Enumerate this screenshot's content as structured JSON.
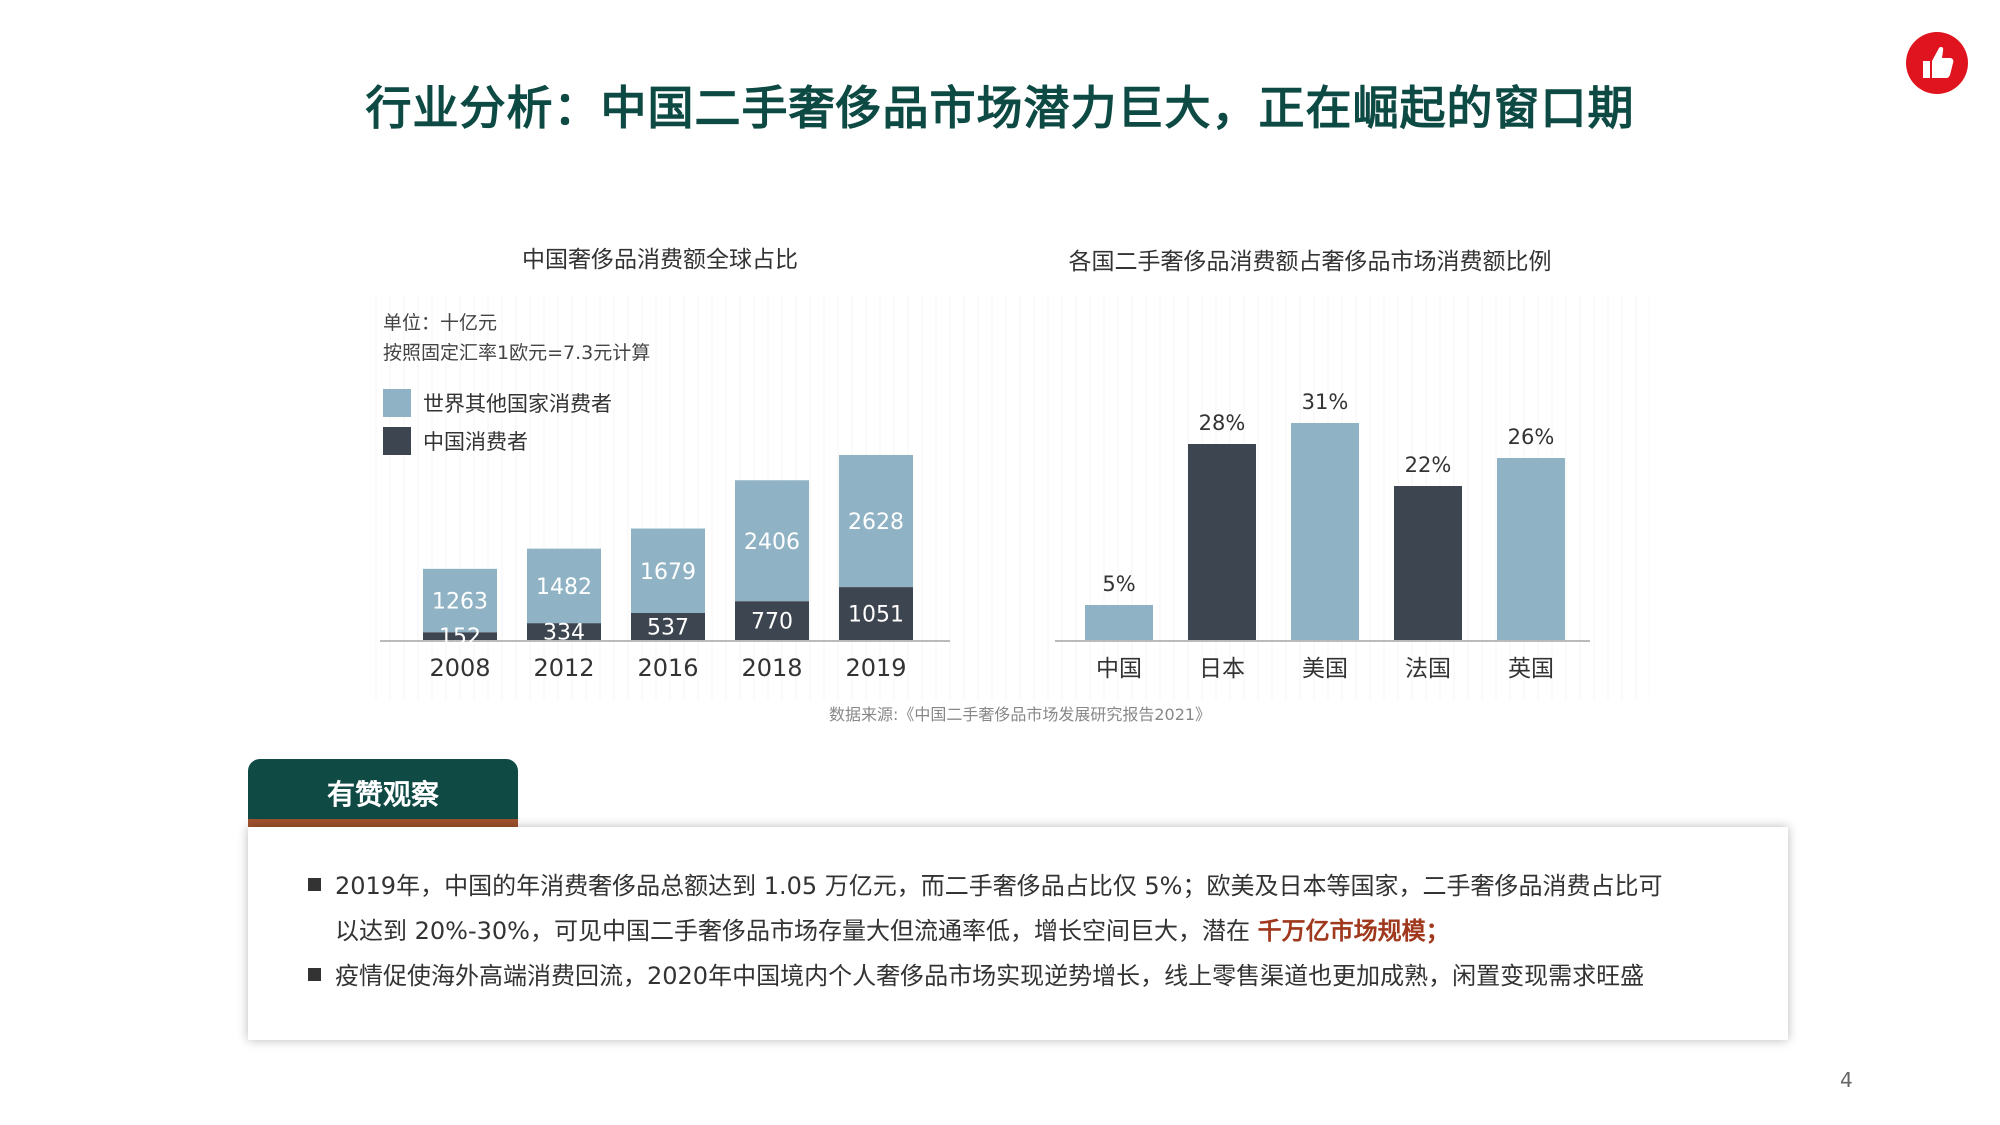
{
  "header": {
    "title": "行业分析：中国二手奢侈品市场潜力巨大，正在崛起的窗口期"
  },
  "chart_data": [
    {
      "type": "bar",
      "title": "中国奢侈品消费额全球占比",
      "unit": "单位：十亿元",
      "note": "按照固定汇率1欧元=7.3元计算",
      "categories": [
        "2008",
        "2012",
        "2016",
        "2018",
        "2019"
      ],
      "series": [
        {
          "name": "中国消费者",
          "values": [
            152,
            334,
            537,
            770,
            1051
          ],
          "labels": [
            "152",
            "334",
            "537",
            "770",
            "1051"
          ],
          "color": "#3d4550"
        },
        {
          "name": "世界其他国家消费者",
          "values": [
            1263,
            1482,
            1679,
            2406,
            2628
          ],
          "labels": [
            "1263",
            "1482",
            "1679",
            "2406",
            "2628"
          ],
          "color": "#8fb3c4"
        }
      ],
      "stacked": true,
      "legend": "top-left"
    },
    {
      "type": "bar",
      "title": "各国二手奢侈品消费额占奢侈品市场消费额比例",
      "categories": [
        "中国",
        "日本",
        "美国",
        "法国",
        "英国"
      ],
      "values": [
        5,
        28,
        31,
        22,
        26
      ],
      "labels": [
        "5%",
        "28%",
        "31%",
        "22%",
        "26%"
      ],
      "colors": [
        "#8fb3c4",
        "#3d4550",
        "#8fb3c4",
        "#3d4550",
        "#8fb3c4"
      ]
    }
  ],
  "source": "数据来源:《中国二手奢侈品市场发展研究报告2021》",
  "insight": {
    "tab_label": "有赞观察",
    "bullet1_line1": "2019年，中国的年消费奢侈品总额达到 1.05 万亿元，而二手奢侈品占比仅 5%；欧美及日本等国家，二手奢侈品消费占比可",
    "bullet1_line2_prefix": "以达到 20%-30%，可见中国二手奢侈品市场存量大但流通率低，增长空间巨大，潜在 ",
    "bullet1_highlight": "千万亿市场规模",
    "bullet1_suffix": "；",
    "bullet2": "疫情促使海外高端消费回流，2020年中国境内个人奢侈品市场实现逆势增长，线上零售渠道也更加成熟，闲置变现需求旺盛"
  },
  "page_number": "4",
  "colors": {
    "accent": "#0e4a44",
    "highlight": "#a0381d",
    "logo": "#e0141e"
  }
}
